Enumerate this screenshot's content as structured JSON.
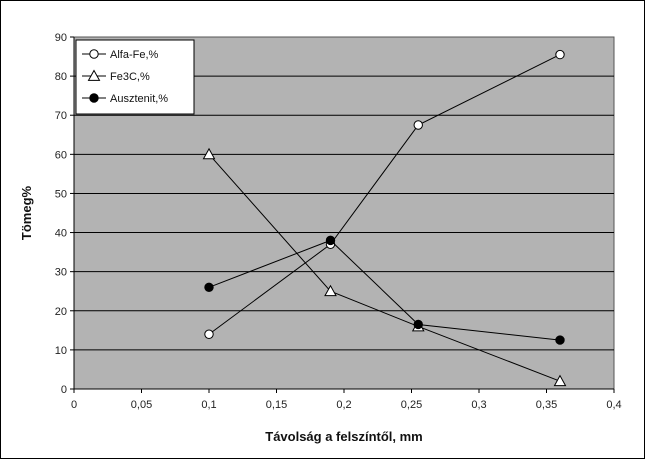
{
  "chart_data": {
    "type": "line",
    "title": "",
    "xlabel": "Távolság a felszíntől, mm",
    "ylabel": "Tömeg%",
    "xlim": [
      0,
      0.4
    ],
    "ylim": [
      0,
      90
    ],
    "x_ticks": [
      "0",
      "0,05",
      "0,1",
      "0,15",
      "0,2",
      "0,25",
      "0,3",
      "0,35",
      "0,4"
    ],
    "y_ticks": [
      "0",
      "10",
      "20",
      "30",
      "40",
      "50",
      "60",
      "70",
      "80",
      "90"
    ],
    "grid": true,
    "legend_position": "top-left",
    "plot_background": "#b3b3b3",
    "series": [
      {
        "name": "Alfa-Fe,%",
        "marker": "open-circle",
        "x": [
          0.1,
          0.19,
          0.255,
          0.36
        ],
        "y": [
          14,
          37,
          67.5,
          85.5
        ]
      },
      {
        "name": "Fe3C,%",
        "marker": "open-triangle",
        "x": [
          0.1,
          0.19,
          0.255,
          0.36
        ],
        "y": [
          60,
          25,
          16,
          2
        ]
      },
      {
        "name": "Ausztenit,%",
        "marker": "filled-circle",
        "x": [
          0.1,
          0.19,
          0.255,
          0.36
        ],
        "y": [
          26,
          38,
          16.5,
          12.5
        ]
      }
    ]
  }
}
